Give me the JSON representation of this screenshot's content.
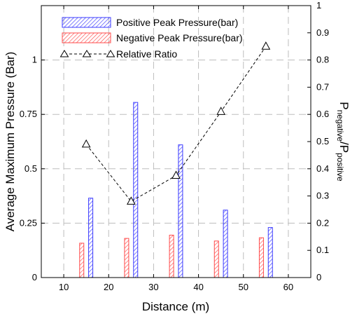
{
  "chart_data": {
    "type": "bar",
    "xlabel": "Distance (m)",
    "ylabel": "Average Maximum Pressure (Bar)",
    "y2label_main": "P",
    "y2label_sub1": "negative",
    "y2label_mid": "/P",
    "y2label_sub2": "positive",
    "xlim": [
      5,
      65
    ],
    "ylim": [
      0,
      1.25
    ],
    "y2lim": [
      0,
      1
    ],
    "xticks": [
      10,
      20,
      30,
      40,
      50,
      60
    ],
    "yticks": [
      0,
      0.25,
      0.5,
      0.75,
      1
    ],
    "ytick_labels": [
      "0",
      "0.25",
      "0.5",
      "0.75",
      "1"
    ],
    "y2ticks": [
      0,
      0.1,
      0.2,
      0.3,
      0.4,
      0.5,
      0.6,
      0.7,
      0.8,
      0.9,
      1
    ],
    "y2tick_labels": [
      "0",
      "0.1",
      "0.2",
      "0.3",
      "0.4",
      "0.5",
      "0.6",
      "0.7",
      "0.8",
      "0.9",
      "1"
    ],
    "grid": true,
    "legend_position": "top-left",
    "x": [
      15,
      25,
      35,
      45,
      55
    ],
    "series": [
      {
        "name": "Positive Peak Pressure(bar)",
        "kind": "bar",
        "axis": "left",
        "color": "#3b3bff",
        "values": [
          0.365,
          0.805,
          0.61,
          0.31,
          0.23
        ]
      },
      {
        "name": "Negative Peak Pressure(bar)",
        "kind": "bar",
        "axis": "left",
        "color": "#ff4b4b",
        "values": [
          0.158,
          0.18,
          0.195,
          0.168,
          0.183
        ]
      },
      {
        "name": "Relative Ratio",
        "kind": "line",
        "axis": "right",
        "color": "#000000",
        "values": [
          0.49,
          0.28,
          0.375,
          0.61,
          0.85
        ]
      }
    ]
  }
}
